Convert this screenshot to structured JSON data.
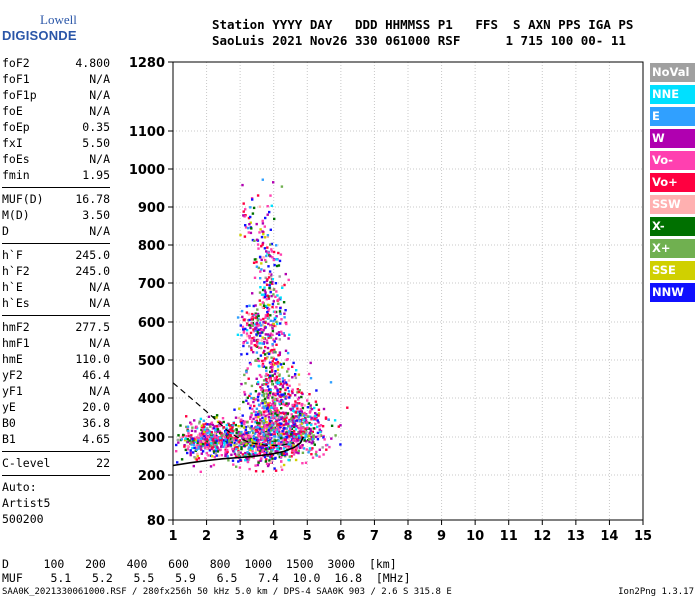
{
  "logo": {
    "line1": "Lowell",
    "line2": "DIGISONDE"
  },
  "header": {
    "line1": "Station YYYY DAY   DDD HHMMSS P1   FFS  S AXN PPS IGA PS",
    "line2": "SaoLuis 2021 Nov26 330 061000 RSF      1 715 100 00- 11"
  },
  "params": [
    [
      {
        "k": "foF2",
        "v": "4.800"
      },
      {
        "k": "foF1",
        "v": "N/A"
      },
      {
        "k": "foF1p",
        "v": "N/A"
      },
      {
        "k": "foE",
        "v": "N/A"
      },
      {
        "k": "foEp",
        "v": "0.35"
      },
      {
        "k": "fxI",
        "v": "5.50"
      },
      {
        "k": "foEs",
        "v": "N/A"
      },
      {
        "k": "fmin",
        "v": "1.95"
      }
    ],
    [
      {
        "k": "MUF(D)",
        "v": "16.78"
      },
      {
        "k": "M(D)",
        "v": "3.50"
      },
      {
        "k": "D",
        "v": "N/A"
      }
    ],
    [
      {
        "k": "h`F",
        "v": "245.0"
      },
      {
        "k": "h`F2",
        "v": "245.0"
      },
      {
        "k": "h`E",
        "v": "N/A"
      },
      {
        "k": "h`Es",
        "v": "N/A"
      }
    ],
    [
      {
        "k": "hmF2",
        "v": "277.5"
      },
      {
        "k": "hmF1",
        "v": "N/A"
      },
      {
        "k": "hmE",
        "v": "110.0"
      },
      {
        "k": "yF2",
        "v": "46.4"
      },
      {
        "k": "yF1",
        "v": "N/A"
      },
      {
        "k": "yE",
        "v": "20.0"
      },
      {
        "k": "B0",
        "v": "36.8"
      },
      {
        "k": "B1",
        "v": "4.65"
      }
    ],
    [
      {
        "k": "C-level",
        "v": "22"
      }
    ]
  ],
  "auto": [
    "Auto:",
    "Artist5",
    "500200"
  ],
  "legend": [
    {
      "label": "NoVal",
      "color": "#a0a0a0"
    },
    {
      "label": "NNE",
      "color": "#00e0ff"
    },
    {
      "label": "E",
      "color": "#30a0ff"
    },
    {
      "label": "W",
      "color": "#b000b0"
    },
    {
      "label": "Vo-",
      "color": "#ff40b0"
    },
    {
      "label": "Vo+",
      "color": "#ff0040"
    },
    {
      "label": "SSW",
      "color": "#ffb0b0"
    },
    {
      "label": "X-",
      "color": "#007000"
    },
    {
      "label": "X+",
      "color": "#70b050"
    },
    {
      "label": "SSE",
      "color": "#d0d000"
    },
    {
      "label": "NNW",
      "color": "#1010ff"
    }
  ],
  "footer": {
    "d_line": "D     100   200   400   600   800  1000  1500  3000  [km]",
    "muf_line": "MUF    5.1   5.2   5.5   5.9   6.5   7.4  10.0  16.8  [MHz]",
    "file_line": "SAA0K_2021330061000.RSF / 280fx256h 50 kHz 5.0 km / DPS-4 SAA0K 903 / 2.6 S 315.8 E",
    "version": "Ion2Png 1.3.17"
  },
  "chart_data": {
    "type": "scatter",
    "xlim": [
      1,
      15
    ],
    "ylim": [
      80,
      1280
    ],
    "xticks": [
      "1",
      "2",
      "3",
      "4",
      "5",
      "6",
      "7",
      "8",
      "9",
      "10",
      "11",
      "12",
      "13",
      "14",
      "15"
    ],
    "yticks": [
      {
        "v": 80,
        "label": "80"
      },
      {
        "v": 200,
        "label": "200"
      },
      {
        "v": 300,
        "label": "300"
      },
      {
        "v": 400,
        "label": "400"
      },
      {
        "v": 500,
        "label": "500"
      },
      {
        "v": 600,
        "label": "600"
      },
      {
        "v": 700,
        "label": "700"
      },
      {
        "v": 800,
        "label": "800"
      },
      {
        "v": 900,
        "label": "900"
      },
      {
        "v": 1000,
        "label": "1000"
      },
      {
        "v": 1100,
        "label": "1100"
      },
      {
        "v": 1280,
        "label": "1280"
      }
    ],
    "grid": true,
    "trace": [
      [
        1.0,
        225
      ],
      [
        1.5,
        232
      ],
      [
        2.0,
        238
      ],
      [
        2.5,
        243
      ],
      [
        3.0,
        246
      ],
      [
        3.5,
        250
      ],
      [
        4.0,
        256
      ],
      [
        4.3,
        262
      ],
      [
        4.6,
        272
      ],
      [
        4.8,
        285
      ],
      [
        4.88,
        300
      ]
    ],
    "profile": [
      [
        1.0,
        440
      ],
      [
        1.4,
        410
      ],
      [
        1.8,
        380
      ],
      [
        2.2,
        350
      ],
      [
        2.6,
        318
      ],
      [
        2.9,
        300
      ],
      [
        3.3,
        285
      ],
      [
        3.8,
        278
      ],
      [
        4.2,
        278
      ],
      [
        4.6,
        285
      ]
    ],
    "clusters": [
      {
        "cx": 2.05,
        "cy": 300,
        "sx": 0.45,
        "sy": 22,
        "n": 420
      },
      {
        "cx": 3.3,
        "cy": 290,
        "sx": 0.55,
        "sy": 30,
        "n": 520
      },
      {
        "cx": 4.25,
        "cy": 310,
        "sx": 0.5,
        "sy": 40,
        "n": 480
      },
      {
        "cx": 3.95,
        "cy": 400,
        "sx": 0.45,
        "sy": 55,
        "n": 300
      },
      {
        "cx": 3.9,
        "cy": 560,
        "sx": 0.22,
        "sy": 120,
        "n": 260
      },
      {
        "cx": 3.35,
        "cy": 580,
        "sx": 0.2,
        "sy": 30,
        "n": 120
      },
      {
        "cx": 3.7,
        "cy": 760,
        "sx": 0.2,
        "sy": 90,
        "n": 90
      },
      {
        "cx": 5.0,
        "cy": 330,
        "sx": 0.35,
        "sy": 40,
        "n": 160
      },
      {
        "cx": 3.25,
        "cy": 870,
        "sx": 0.12,
        "sy": 40,
        "n": 25
      }
    ]
  }
}
